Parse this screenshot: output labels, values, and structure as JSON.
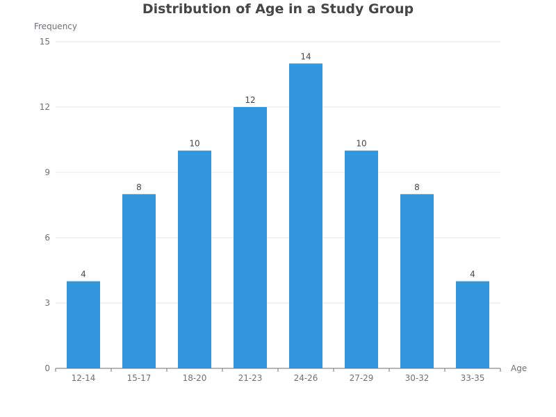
{
  "chart_data": {
    "type": "bar",
    "title": "Distribution of Age in a Study Group",
    "xlabel": "Age",
    "ylabel": "Frequency",
    "categories": [
      "12-14",
      "15-17",
      "18-20",
      "21-23",
      "24-26",
      "27-29",
      "30-32",
      "33-35"
    ],
    "values": [
      4,
      8,
      10,
      12,
      14,
      10,
      8,
      4
    ],
    "ylim": [
      0,
      15
    ],
    "yticks": [
      0,
      3,
      6,
      9,
      12,
      15
    ],
    "grid": true,
    "data_labels": true
  },
  "colors": {
    "bar": "#3396dc",
    "grid": "#e6e6e6",
    "axis": "#6e7079",
    "text": "#6e7079",
    "label": "#464646",
    "title": "#464646"
  }
}
